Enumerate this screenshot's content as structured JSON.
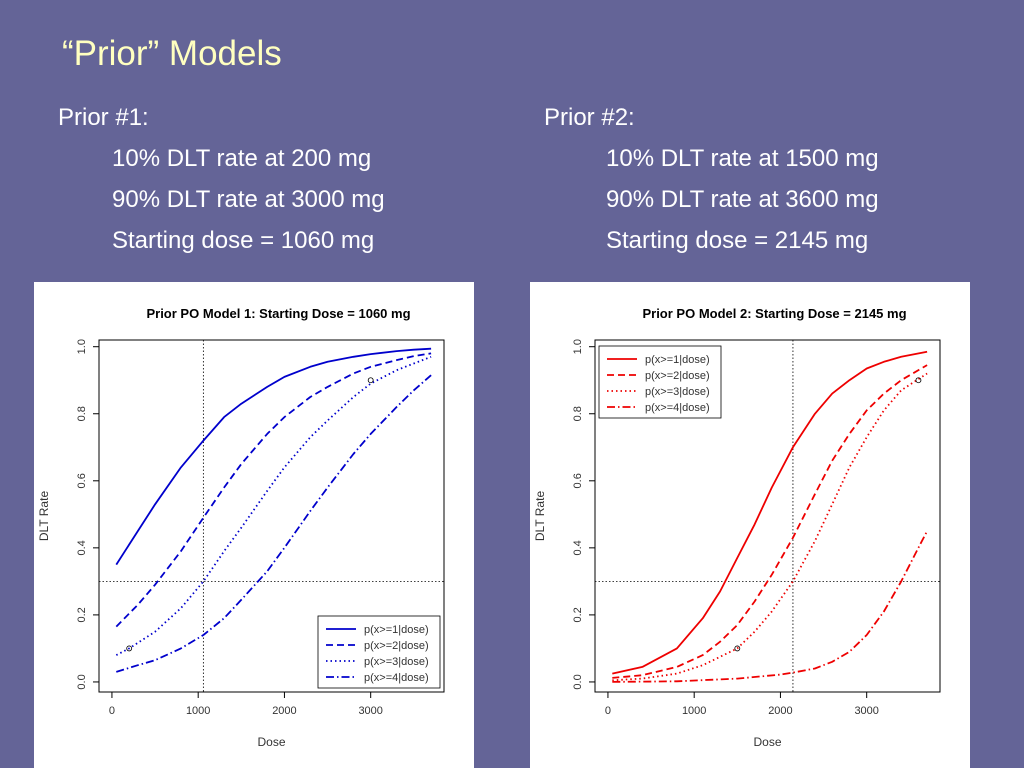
{
  "slide": {
    "title": "“Prior” Models"
  },
  "priors": [
    {
      "heading": "Prior #1:",
      "lines": [
        "10% DLT rate at 200 mg",
        "90% DLT rate at 3000 mg",
        "Starting dose = 1060 mg"
      ]
    },
    {
      "heading": "Prior #2:",
      "lines": [
        "10% DLT rate at 1500 mg",
        "90% DLT rate at 3600 mg",
        "Starting dose = 2145 mg"
      ]
    }
  ],
  "chart_data": [
    {
      "type": "line",
      "title": "Prior PO Model 1: Starting Dose = 1060 mg",
      "xlabel": "Dose",
      "ylabel": "DLT Rate",
      "xlim": [
        -150,
        3850
      ],
      "ylim": [
        -0.03,
        1.02
      ],
      "xticks": [
        0,
        1000,
        2000,
        3000
      ],
      "yticks": [
        0.0,
        0.2,
        0.4,
        0.6,
        0.8,
        1.0
      ],
      "color": "#0000cc",
      "legend_position": "bottom-right",
      "vline": 1060,
      "hline": 0.3,
      "markers": [
        {
          "x": 200,
          "y": 0.1
        },
        {
          "x": 3000,
          "y": 0.9
        }
      ],
      "series": [
        {
          "name": "p(x>=1|dose)",
          "dash": "solid",
          "x": [
            50,
            300,
            500,
            800,
            1060,
            1300,
            1500,
            1800,
            2000,
            2300,
            2500,
            2800,
            3000,
            3300,
            3500,
            3700
          ],
          "y": [
            0.35,
            0.45,
            0.53,
            0.64,
            0.72,
            0.79,
            0.83,
            0.88,
            0.91,
            0.94,
            0.955,
            0.97,
            0.978,
            0.987,
            0.991,
            0.994
          ]
        },
        {
          "name": "p(x>=2|dose)",
          "dash": "dashed",
          "x": [
            50,
            300,
            500,
            800,
            1060,
            1300,
            1500,
            1800,
            2000,
            2300,
            2500,
            2800,
            3000,
            3300,
            3500,
            3700
          ],
          "y": [
            0.165,
            0.23,
            0.29,
            0.39,
            0.49,
            0.58,
            0.65,
            0.74,
            0.79,
            0.85,
            0.88,
            0.92,
            0.94,
            0.96,
            0.972,
            0.98
          ]
        },
        {
          "name": "p(x>=3|dose)",
          "dash": "dotted",
          "x": [
            50,
            200,
            500,
            800,
            1060,
            1300,
            1500,
            1800,
            2000,
            2300,
            2500,
            2800,
            3000,
            3300,
            3500,
            3700
          ],
          "y": [
            0.08,
            0.1,
            0.15,
            0.22,
            0.3,
            0.39,
            0.46,
            0.57,
            0.64,
            0.73,
            0.78,
            0.85,
            0.89,
            0.93,
            0.95,
            0.97
          ]
        },
        {
          "name": "p(x>=4|dose)",
          "dash": "dashdot",
          "x": [
            50,
            300,
            500,
            800,
            1060,
            1300,
            1500,
            1800,
            2000,
            2300,
            2500,
            2800,
            3000,
            3300,
            3500,
            3700
          ],
          "y": [
            0.03,
            0.05,
            0.065,
            0.1,
            0.14,
            0.19,
            0.245,
            0.33,
            0.4,
            0.51,
            0.58,
            0.68,
            0.74,
            0.82,
            0.87,
            0.915
          ]
        }
      ]
    },
    {
      "type": "line",
      "title": "Prior PO Model 2: Starting Dose = 2145 mg",
      "xlabel": "Dose",
      "ylabel": "DLT Rate",
      "xlim": [
        -150,
        3850
      ],
      "ylim": [
        -0.03,
        1.02
      ],
      "xticks": [
        0,
        1000,
        2000,
        3000
      ],
      "yticks": [
        0.0,
        0.2,
        0.4,
        0.6,
        0.8,
        1.0
      ],
      "color": "#ee0000",
      "legend_position": "top-left",
      "vline": 2145,
      "hline": 0.3,
      "markers": [
        {
          "x": 1500,
          "y": 0.1
        },
        {
          "x": 3600,
          "y": 0.9
        }
      ],
      "series": [
        {
          "name": "p(x>=1|dose)",
          "dash": "solid",
          "x": [
            50,
            400,
            800,
            1100,
            1300,
            1500,
            1700,
            1900,
            2145,
            2400,
            2600,
            2800,
            3000,
            3200,
            3400,
            3700
          ],
          "y": [
            0.025,
            0.045,
            0.1,
            0.19,
            0.27,
            0.37,
            0.47,
            0.58,
            0.7,
            0.8,
            0.86,
            0.9,
            0.935,
            0.955,
            0.97,
            0.985
          ]
        },
        {
          "name": "p(x>=2|dose)",
          "dash": "dashed",
          "x": [
            50,
            400,
            800,
            1100,
            1300,
            1500,
            1700,
            1900,
            2145,
            2400,
            2600,
            2800,
            3000,
            3200,
            3400,
            3700
          ],
          "y": [
            0.012,
            0.02,
            0.045,
            0.08,
            0.12,
            0.17,
            0.24,
            0.32,
            0.43,
            0.56,
            0.66,
            0.74,
            0.81,
            0.86,
            0.9,
            0.945
          ]
        },
        {
          "name": "p(x>=3|dose)",
          "dash": "dotted",
          "x": [
            50,
            400,
            800,
            1100,
            1300,
            1500,
            1700,
            1900,
            2145,
            2400,
            2600,
            2800,
            3000,
            3200,
            3400,
            3700
          ],
          "y": [
            0.005,
            0.01,
            0.025,
            0.05,
            0.075,
            0.1,
            0.15,
            0.21,
            0.3,
            0.42,
            0.53,
            0.64,
            0.73,
            0.81,
            0.87,
            0.92
          ]
        },
        {
          "name": "p(x>=4|dose)",
          "dash": "dashdot",
          "x": [
            50,
            800,
            1500,
            2000,
            2145,
            2400,
            2600,
            2800,
            3000,
            3200,
            3400,
            3600,
            3700
          ],
          "y": [
            0.0,
            0.002,
            0.01,
            0.022,
            0.028,
            0.04,
            0.06,
            0.09,
            0.14,
            0.21,
            0.3,
            0.4,
            0.45
          ]
        }
      ]
    }
  ]
}
